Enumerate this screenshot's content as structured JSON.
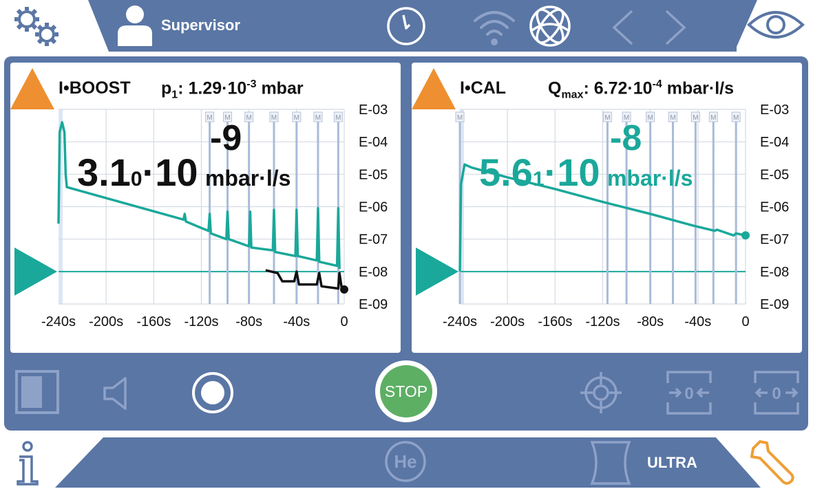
{
  "topbar": {
    "user_label": "Supervisor",
    "icons": [
      "settings-gears-icon",
      "user-icon",
      "clock-icon",
      "wifi-icon",
      "network-globe-icon",
      "chevron-left-icon",
      "chevron-right-icon",
      "eye-icon"
    ]
  },
  "left_panel": {
    "mode": "I•BOOST",
    "param_symbol": "p",
    "param_sub": "1",
    "param_mantissa": "1.29·10",
    "param_exp": "-3",
    "param_unit": "mbar",
    "value_main": "3.1",
    "value_small_digit": "0",
    "value_times": "·10",
    "value_exp": "-9",
    "value_unit": "mbar·l/s",
    "value_color": "#111111",
    "chart_data": {
      "type": "line",
      "x_ticks": [
        "-240s",
        "-200s",
        "-160s",
        "-120s",
        "-80s",
        "-40s",
        "0"
      ],
      "y_ticks": [
        "E-03",
        "E-04",
        "E-05",
        "E-06",
        "E-07",
        "E-08",
        "E-09"
      ],
      "xlim": [
        -240,
        0
      ],
      "y_scale": "log",
      "ylim": [
        1e-09,
        0.001
      ],
      "grid": true,
      "threshold": 1e-08,
      "marker_label": "M",
      "marker_x": [
        -113,
        -98,
        -80,
        -59,
        -40,
        -22,
        -5
      ],
      "series": [
        {
          "color": "#1aa89a",
          "points": [
            [
              -240,
              3e-07
            ],
            [
              -239,
              0.0002
            ],
            [
              -237,
              0.0004
            ],
            [
              -235,
              0.0002
            ],
            [
              -234,
              1e-05
            ],
            [
              -233,
              4e-06
            ],
            [
              -135,
              4e-07
            ],
            [
              -134,
              6e-07
            ],
            [
              -133,
              3.5e-07
            ],
            [
              -120,
              2.2e-07
            ],
            [
              -114,
              1.8e-07
            ],
            [
              -113,
              6e-07
            ],
            [
              -112,
              1.5e-07
            ],
            [
              -99,
              1e-07
            ],
            [
              -98,
              7e-07
            ],
            [
              -97,
              1e-07
            ],
            [
              -80,
              6e-08
            ],
            [
              -79,
              7e-07
            ],
            [
              -78,
              5.5e-08
            ],
            [
              -60,
              4.5e-08
            ],
            [
              -59,
              8e-07
            ],
            [
              -58,
              4e-08
            ],
            [
              -41,
              3e-08
            ],
            [
              -40,
              8e-07
            ],
            [
              -39,
              3e-08
            ],
            [
              -23,
              2.2e-08
            ],
            [
              -22,
              9e-07
            ],
            [
              -21,
              2e-08
            ],
            [
              -6,
              1.5e-08
            ],
            [
              -5,
              9e-07
            ],
            [
              -4,
              1.2e-08
            ]
          ]
        },
        {
          "color": "#111111",
          "points": [
            [
              -66,
              1.1e-08
            ],
            [
              -56,
              9e-09
            ],
            [
              -52,
              5e-09
            ],
            [
              -42,
              5e-09
            ],
            [
              -40,
              1e-08
            ],
            [
              -38,
              4e-09
            ],
            [
              -23,
              4e-09
            ],
            [
              -21,
              9e-09
            ],
            [
              -19,
              3.5e-09
            ],
            [
              -5,
              3e-09
            ],
            [
              -4,
              9e-09
            ],
            [
              -2,
              3e-09
            ],
            [
              0,
              2.8e-09
            ]
          ]
        }
      ],
      "end_point": [
        0,
        2.8e-09
      ],
      "end_point_color": "#111111"
    }
  },
  "right_panel": {
    "mode": "I•CAL",
    "param_symbol": "Q",
    "param_sub": "max",
    "param_mantissa": "6.72·10",
    "param_exp": "-4",
    "param_unit": "mbar·l/s",
    "value_main": "5.6",
    "value_small_digit": "1",
    "value_times": "·10",
    "value_exp": "-8",
    "value_unit": "mbar·l/s",
    "value_color": "#1aa89a",
    "chart_data": {
      "type": "line",
      "x_ticks": [
        "-240s",
        "-200s",
        "-160s",
        "-120s",
        "-80s",
        "-40s",
        "0"
      ],
      "y_ticks": [
        "E-03",
        "E-04",
        "E-05",
        "E-06",
        "E-07",
        "E-08",
        "E-09"
      ],
      "xlim": [
        -240,
        0
      ],
      "y_scale": "log",
      "ylim": [
        1e-09,
        0.001
      ],
      "grid": true,
      "threshold": 1e-08,
      "marker_label": "M",
      "marker_x": [
        -240,
        -116,
        -100,
        -80,
        -61,
        -42,
        -27,
        -8
      ],
      "series": [
        {
          "color": "#1aa89a",
          "points": [
            [
              -240,
              1e-08
            ],
            [
              -239,
              5e-06
            ],
            [
              -236,
              2e-05
            ],
            [
              -230,
              1.6e-05
            ],
            [
              -200,
              8e-06
            ],
            [
              -160,
              3.5e-06
            ],
            [
              -120,
              1.4e-06
            ],
            [
              -80,
              6e-07
            ],
            [
              -44,
              2.6e-07
            ],
            [
              -40,
              2.4e-07
            ],
            [
              -26,
              1.8e-07
            ],
            [
              -24,
              1.95e-07
            ],
            [
              -10,
              1.3e-07
            ],
            [
              -8,
              1.5e-07
            ],
            [
              0,
              1.3e-07
            ]
          ]
        }
      ],
      "end_point": [
        0,
        1.3e-07
      ],
      "end_point_color": "#1aa89a"
    }
  },
  "controls": {
    "stop_label": "STOP",
    "icons": [
      "split-view-icon",
      "speaker-mute-icon",
      "record-icon",
      "stop-button",
      "target-icon",
      "zero-in-icon",
      "zero-out-icon"
    ]
  },
  "bottombar": {
    "gas_label": "He",
    "range_label": "ULTRA",
    "icons": [
      "info-icon",
      "helium-icon",
      "leak-ultra-icon",
      "wrench-icon"
    ]
  },
  "colors": {
    "bar_blue": "#5a76a5",
    "icon_white": "#ffffff",
    "icon_faint": "#8ea2c8",
    "teal": "#1aa89a",
    "orange": "#ee8f31",
    "stop_green": "#5daf64",
    "wrench_orange": "#ee9f36"
  }
}
